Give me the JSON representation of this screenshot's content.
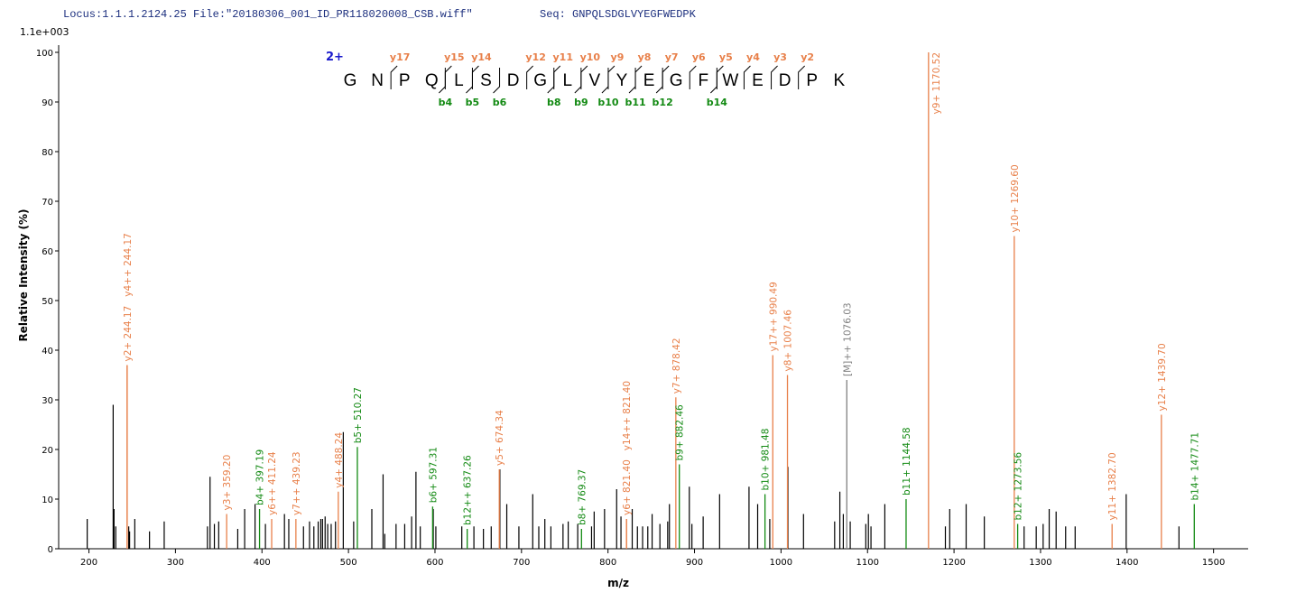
{
  "header": {
    "locus": "Locus:1.1.1.2124.25 File:\"20180306_001_ID_PR118020008_CSB.wiff\"",
    "seq": "Seq: GNPQLSDGLVYEGFWEDPK"
  },
  "chart_data": {
    "type": "spectrum",
    "scale_label": "1.1e+003",
    "xlabel": "m/z",
    "ylabel": "Relative   Intensity (%)",
    "xlim": [
      165,
      1540
    ],
    "ylim": [
      0,
      100
    ],
    "xticks": [
      200,
      300,
      400,
      500,
      600,
      700,
      800,
      900,
      1000,
      1100,
      1200,
      1300,
      1400,
      1500
    ],
    "yticks": [
      0,
      10,
      20,
      30,
      40,
      50,
      60,
      70,
      80,
      90,
      100
    ],
    "peak_color": "#000000",
    "x": [
      198,
      228,
      229,
      231,
      246,
      247,
      253,
      270,
      287,
      337,
      340,
      345,
      350,
      372,
      380,
      392,
      404,
      426,
      431,
      448,
      455,
      460,
      465,
      468,
      470,
      473,
      476,
      480,
      485,
      494,
      506,
      527,
      540,
      542,
      555,
      565,
      573,
      578,
      583,
      598,
      601,
      631,
      645,
      656,
      665,
      675,
      683,
      697,
      713,
      720,
      727,
      734,
      748,
      754,
      765,
      781,
      784,
      796,
      810,
      815,
      828,
      834,
      840,
      846,
      851,
      860,
      869,
      871,
      894,
      897,
      910,
      929,
      963,
      973,
      987,
      1008,
      1026,
      1062,
      1068,
      1072,
      1080,
      1098,
      1101,
      1104,
      1120,
      1190,
      1195,
      1214,
      1235,
      1281,
      1295,
      1303,
      1310,
      1318,
      1329,
      1340,
      1399,
      1460
    ],
    "values": [
      6,
      29,
      8,
      4.5,
      4.5,
      3.5,
      6,
      3.5,
      5.5,
      4.5,
      14.5,
      5,
      5.5,
      4,
      8,
      9,
      5,
      7,
      6,
      4.5,
      5.5,
      4.5,
      5.5,
      6,
      6,
      6.5,
      5,
      5,
      5.5,
      23.5,
      5.5,
      8,
      15,
      3,
      5,
      5,
      6.5,
      15.5,
      4.5,
      8,
      4.5,
      4.5,
      4.5,
      4,
      4.5,
      16,
      9,
      4.5,
      11,
      4.5,
      6,
      4.5,
      5,
      5.5,
      5,
      4.5,
      7.5,
      8,
      12,
      6.5,
      8,
      4.5,
      4.5,
      4.5,
      7,
      5,
      5.5,
      9,
      12.5,
      5,
      6.5,
      11,
      12.5,
      9,
      6,
      16.5,
      7,
      5.5,
      11.5,
      7,
      5.5,
      5,
      7,
      4.5,
      9,
      4.5,
      8,
      9,
      6.5,
      4.5,
      4.5,
      5,
      8,
      7.5,
      4.5,
      4.5,
      11,
      4.5
    ],
    "annotated_peaks": [
      {
        "label": "y2+ 244.17",
        "x": 244.17,
        "value": 37,
        "color": "#e8804a"
      },
      {
        "label": "y4++ 244.17",
        "x": 244.17,
        "value": 37,
        "color": "#e8804a"
      },
      {
        "label": "y3+ 359.20",
        "x": 359.2,
        "value": 7,
        "color": "#e8804a"
      },
      {
        "label": "b4+ 397.19",
        "x": 397.19,
        "value": 8,
        "color": "#138a13"
      },
      {
        "label": "y6++ 411.24",
        "x": 411.24,
        "value": 6,
        "color": "#e8804a"
      },
      {
        "label": "y7++ 439.23",
        "x": 439.23,
        "value": 6,
        "color": "#e8804a"
      },
      {
        "label": "y4+ 488.24",
        "x": 488.24,
        "value": 11.5,
        "color": "#e8804a"
      },
      {
        "label": "b5+ 510.27",
        "x": 510.27,
        "value": 20.5,
        "color": "#138a13"
      },
      {
        "label": "b6+ 597.31",
        "x": 597.31,
        "value": 8.5,
        "color": "#138a13"
      },
      {
        "label": "b12++ 637.26",
        "x": 637.26,
        "value": 4,
        "color": "#138a13"
      },
      {
        "label": "y5+ 674.34",
        "x": 674.34,
        "value": 16,
        "color": "#e8804a"
      },
      {
        "label": "b8+ 769.37",
        "x": 769.37,
        "value": 4,
        "color": "#138a13"
      },
      {
        "label": "y6+ 821.40",
        "x": 821.4,
        "value": 6,
        "color": "#e8804a"
      },
      {
        "label": "y14++ 821.40",
        "x": 821.4,
        "value": 6,
        "color": "#e8804a"
      },
      {
        "label": "y7+ 878.42",
        "x": 878.42,
        "value": 30.5,
        "color": "#e8804a"
      },
      {
        "label": "b9+ 882.46",
        "x": 882.46,
        "value": 17,
        "color": "#138a13"
      },
      {
        "label": "b10+ 981.48",
        "x": 981.48,
        "value": 11,
        "color": "#138a13"
      },
      {
        "label": "y17++ 990.49",
        "x": 990.49,
        "value": 39,
        "color": "#e8804a"
      },
      {
        "label": "y8+ 1007.46",
        "x": 1007.46,
        "value": 35,
        "color": "#e8804a"
      },
      {
        "label": "[M]++ 1076.03",
        "x": 1076.03,
        "value": 34,
        "color": "#808080"
      },
      {
        "label": "b11+ 1144.58",
        "x": 1144.58,
        "value": 10,
        "color": "#138a13"
      },
      {
        "label": "y9+ 1170.52",
        "x": 1170.52,
        "value": 100,
        "color": "#e8804a"
      },
      {
        "label": "y10+ 1269.60",
        "x": 1269.6,
        "value": 63,
        "color": "#e8804a"
      },
      {
        "label": "b12+ 1273.56",
        "x": 1273.56,
        "value": 5,
        "color": "#138a13"
      },
      {
        "label": "y11+ 1382.70",
        "x": 1382.7,
        "value": 5,
        "color": "#e8804a"
      },
      {
        "label": "y12+ 1439.70",
        "x": 1439.7,
        "value": 27,
        "color": "#e8804a"
      },
      {
        "label": "b14+ 1477.71",
        "x": 1477.71,
        "value": 9,
        "color": "#138a13"
      }
    ]
  },
  "sequence": {
    "charge": "2+",
    "residues": [
      "G",
      "N",
      "P",
      "Q",
      "L",
      "S",
      "D",
      "G",
      "L",
      "V",
      "Y",
      "E",
      "G",
      "F",
      "W",
      "E",
      "D",
      "P",
      "K"
    ],
    "y_ions": [
      "y17",
      "y15",
      "y14",
      "y12",
      "y11",
      "y10",
      "y9",
      "y8",
      "y7",
      "y6",
      "y5",
      "y4",
      "y3",
      "y2"
    ],
    "b_ions": [
      "b4",
      "b5",
      "b6",
      "b8",
      "b9",
      "b10",
      "b11",
      "b12",
      "b14"
    ]
  }
}
